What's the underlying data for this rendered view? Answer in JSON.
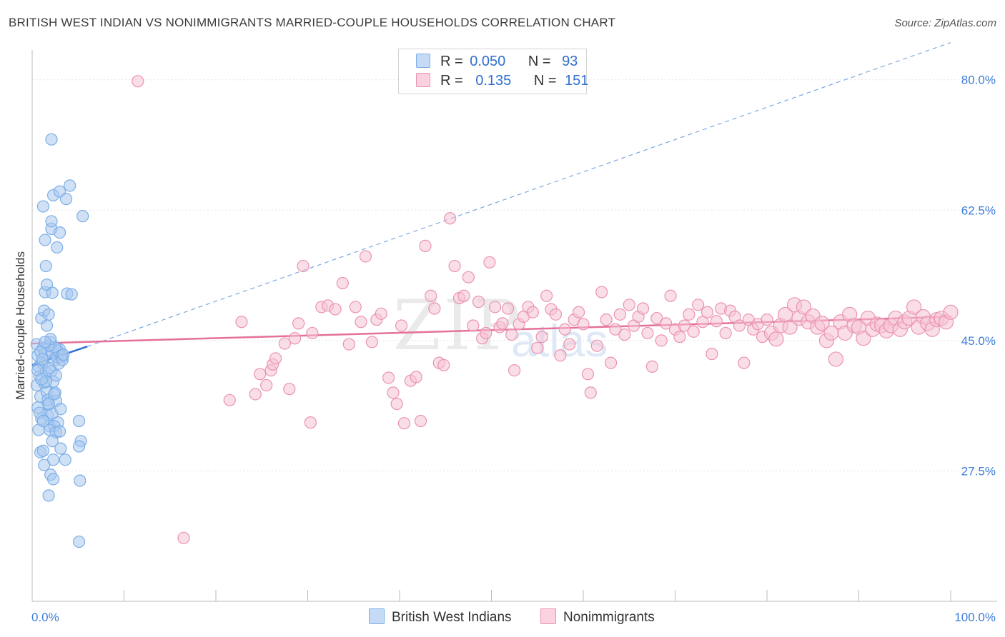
{
  "title": "BRITISH WEST INDIAN VS NONIMMIGRANTS MARRIED-COUPLE HOUSEHOLDS CORRELATION CHART",
  "source": "Source: ZipAtlas.com",
  "watermark": {
    "zip": "ZIP",
    "atlas": "atlas"
  },
  "legend": {
    "rows": [
      {
        "r_label": "R =",
        "r_value": "0.050",
        "n_label": "N =",
        "n_value": "93",
        "color": "#a9c8f0"
      },
      {
        "r_label": "R =",
        "r_value": "0.135",
        "n_label": "N =",
        "n_value": "151",
        "color": "#f7bcd0"
      }
    ]
  },
  "bottom_legend": [
    {
      "label": "British West Indians",
      "color": "#a9c8f0"
    },
    {
      "label": "Nonimmigrants",
      "color": "#f7bcd0"
    }
  ],
  "chart_data": {
    "type": "scatter",
    "title": "BRITISH WEST INDIAN VS NONIMMIGRANTS MARRIED-COUPLE HOUSEHOLDS CORRELATION CHART",
    "xlabel": "",
    "ylabel": "Married-couple Households",
    "xlim": [
      0,
      100
    ],
    "ylim": [
      10,
      84
    ],
    "x_tick_labels": [
      {
        "value": 0,
        "label": "0.0%"
      },
      {
        "value": 100,
        "label": "100.0%"
      }
    ],
    "y_ticks": [
      {
        "value": 27.5,
        "label": "27.5%"
      },
      {
        "value": 45.0,
        "label": "45.0%"
      },
      {
        "value": 62.5,
        "label": "62.5%"
      },
      {
        "value": 80.0,
        "label": "80.0%"
      }
    ],
    "series": [
      {
        "name": "British West Indians",
        "color": "#7aaee8",
        "fill": "#aac9ef",
        "trend": {
          "x0": 0,
          "y0": 41.7,
          "x1": 6,
          "y1": 44.2,
          "color": "#2c6fd1"
        },
        "trend_extended": {
          "x0": 6,
          "y0": 44.2,
          "x1": 100,
          "y1": 85.0,
          "color": "#7aa7e0"
        },
        "points": [
          [
            0.5,
            44.5
          ],
          [
            0.6,
            43.0
          ],
          [
            0.7,
            41.5
          ],
          [
            0.8,
            40.2
          ],
          [
            0.5,
            39.0
          ],
          [
            0.9,
            37.5
          ],
          [
            0.6,
            36.0
          ],
          [
            1.0,
            34.5
          ],
          [
            0.7,
            33.0
          ],
          [
            1.2,
            44.0
          ],
          [
            1.4,
            43.2
          ],
          [
            1.1,
            42.0
          ],
          [
            1.5,
            40.8
          ],
          [
            1.3,
            39.3
          ],
          [
            1.6,
            38.1
          ],
          [
            1.8,
            36.4
          ],
          [
            1.7,
            35.0
          ],
          [
            1.9,
            33.5
          ],
          [
            2.0,
            44.8
          ],
          [
            2.2,
            43.4
          ],
          [
            2.4,
            42.3
          ],
          [
            2.1,
            40.9
          ],
          [
            2.3,
            39.5
          ],
          [
            2.5,
            38.0
          ],
          [
            2.6,
            36.9
          ],
          [
            2.2,
            35.2
          ],
          [
            2.8,
            34.0
          ],
          [
            3.0,
            43.8
          ],
          [
            2.7,
            42.8
          ],
          [
            1.0,
            48.0
          ],
          [
            1.3,
            49.0
          ],
          [
            1.6,
            47.0
          ],
          [
            1.8,
            48.5
          ],
          [
            1.4,
            51.5
          ],
          [
            1.6,
            52.5
          ],
          [
            2.2,
            51.4
          ],
          [
            1.5,
            55.0
          ],
          [
            2.7,
            57.5
          ],
          [
            2.1,
            60.0
          ],
          [
            1.4,
            58.5
          ],
          [
            2.1,
            61.0
          ],
          [
            3.0,
            59.5
          ],
          [
            1.2,
            63.0
          ],
          [
            2.3,
            64.5
          ],
          [
            3.0,
            65.0
          ],
          [
            3.7,
            64.0
          ],
          [
            4.1,
            65.8
          ],
          [
            5.5,
            61.7
          ],
          [
            2.1,
            72.0
          ],
          [
            3.8,
            51.3
          ],
          [
            4.3,
            51.2
          ],
          [
            3.3,
            42.8
          ],
          [
            2.8,
            43.6
          ],
          [
            2.5,
            44.1
          ],
          [
            1.8,
            44.3
          ],
          [
            2.0,
            45.2
          ],
          [
            0.9,
            43.5
          ],
          [
            1.1,
            42.5
          ],
          [
            0.6,
            41.0
          ],
          [
            1.5,
            39.5
          ],
          [
            1.7,
            37.0
          ],
          [
            0.8,
            35.3
          ],
          [
            1.2,
            34.2
          ],
          [
            2.4,
            33.5
          ],
          [
            1.9,
            33.0
          ],
          [
            2.6,
            32.7
          ],
          [
            2.2,
            31.5
          ],
          [
            3.0,
            32.8
          ],
          [
            0.9,
            30.0
          ],
          [
            1.2,
            30.2
          ],
          [
            3.1,
            30.5
          ],
          [
            2.3,
            29.0
          ],
          [
            1.3,
            28.3
          ],
          [
            3.6,
            29.0
          ],
          [
            5.3,
            31.5
          ],
          [
            5.1,
            30.8
          ],
          [
            2.0,
            27.0
          ],
          [
            2.3,
            26.4
          ],
          [
            5.2,
            26.2
          ],
          [
            1.8,
            24.2
          ],
          [
            5.1,
            34.2
          ],
          [
            3.1,
            35.8
          ],
          [
            3.2,
            43.0
          ],
          [
            1.8,
            36.5
          ],
          [
            2.4,
            37.8
          ],
          [
            1.0,
            39.8
          ],
          [
            2.6,
            40.3
          ],
          [
            1.9,
            41.3
          ],
          [
            2.9,
            41.9
          ],
          [
            3.3,
            42.4
          ],
          [
            3.4,
            43.1
          ],
          [
            1.4,
            44.8
          ],
          [
            5.1,
            18.0
          ]
        ]
      },
      {
        "name": "Nonimmigrants",
        "color": "#eb92b2",
        "fill": "#f6c2d4",
        "trend": {
          "x0": 0,
          "y0": 44.6,
          "x1": 100,
          "y1": 48.2,
          "color": "#e5709a"
        },
        "points": [
          [
            11.5,
            79.8
          ],
          [
            16.5,
            18.5
          ],
          [
            21.5,
            37.0
          ],
          [
            22.8,
            47.5
          ],
          [
            24.3,
            37.8
          ],
          [
            24.8,
            40.5
          ],
          [
            25.5,
            39.0
          ],
          [
            26.0,
            41.0
          ],
          [
            26.2,
            41.8
          ],
          [
            26.5,
            42.6
          ],
          [
            27.5,
            44.6
          ],
          [
            28.0,
            38.5
          ],
          [
            28.6,
            45.3
          ],
          [
            29.0,
            47.3
          ],
          [
            30.5,
            46.0
          ],
          [
            29.5,
            55.0
          ],
          [
            30.3,
            34.0
          ],
          [
            31.5,
            49.5
          ],
          [
            32.2,
            49.7
          ],
          [
            33.0,
            49.2
          ],
          [
            33.8,
            52.7
          ],
          [
            34.5,
            44.5
          ],
          [
            35.2,
            49.5
          ],
          [
            35.8,
            47.5
          ],
          [
            36.3,
            56.3
          ],
          [
            37.0,
            44.8
          ],
          [
            37.5,
            47.8
          ],
          [
            38.0,
            48.6
          ],
          [
            38.8,
            40.0
          ],
          [
            39.3,
            38.0
          ],
          [
            39.7,
            36.5
          ],
          [
            40.2,
            47.0
          ],
          [
            40.5,
            33.9
          ],
          [
            41.2,
            39.6
          ],
          [
            41.8,
            40.1
          ],
          [
            42.3,
            34.2
          ],
          [
            42.8,
            57.7
          ],
          [
            43.4,
            51.0
          ],
          [
            43.8,
            49.3
          ],
          [
            44.3,
            42.0
          ],
          [
            44.8,
            41.7
          ],
          [
            45.5,
            61.4
          ],
          [
            46.0,
            55.0
          ],
          [
            46.5,
            50.7
          ],
          [
            47.0,
            51.0
          ],
          [
            47.5,
            53.5
          ],
          [
            48.0,
            47.0
          ],
          [
            48.6,
            50.2
          ],
          [
            49.0,
            45.3
          ],
          [
            49.4,
            46.0
          ],
          [
            49.8,
            55.5
          ],
          [
            50.4,
            49.5
          ],
          [
            50.9,
            46.8
          ],
          [
            51.2,
            47.3
          ],
          [
            51.8,
            49.3
          ],
          [
            52.2,
            45.8
          ],
          [
            52.5,
            41.0
          ],
          [
            53.0,
            47.2
          ],
          [
            53.5,
            48.2
          ],
          [
            54.0,
            49.5
          ],
          [
            54.5,
            48.8
          ],
          [
            55.0,
            44.0
          ],
          [
            55.5,
            45.5
          ],
          [
            56.0,
            51.0
          ],
          [
            56.5,
            49.2
          ],
          [
            57.0,
            48.5
          ],
          [
            57.5,
            43.0
          ],
          [
            58.0,
            46.5
          ],
          [
            58.5,
            44.5
          ],
          [
            59.0,
            47.8
          ],
          [
            59.5,
            48.8
          ],
          [
            60.0,
            47.2
          ],
          [
            60.5,
            40.5
          ],
          [
            60.8,
            38.0
          ],
          [
            61.5,
            44.3
          ],
          [
            62.0,
            51.5
          ],
          [
            62.5,
            47.8
          ],
          [
            63.0,
            42.0
          ],
          [
            63.5,
            46.5
          ],
          [
            64.0,
            48.5
          ],
          [
            64.5,
            45.8
          ],
          [
            65.0,
            49.8
          ],
          [
            65.5,
            47.0
          ],
          [
            66.0,
            48.2
          ],
          [
            66.5,
            49.3
          ],
          [
            67.0,
            46.0
          ],
          [
            67.5,
            41.5
          ],
          [
            68.0,
            48.0
          ],
          [
            68.5,
            45.0
          ],
          [
            69.0,
            47.3
          ],
          [
            69.5,
            51.0
          ],
          [
            70.0,
            46.5
          ],
          [
            70.5,
            45.5
          ],
          [
            71.0,
            47.0
          ],
          [
            71.5,
            48.5
          ],
          [
            72.0,
            46.2
          ],
          [
            72.5,
            49.8
          ],
          [
            73.0,
            47.5
          ],
          [
            73.5,
            48.8
          ],
          [
            74.0,
            43.2
          ],
          [
            74.5,
            47.6
          ],
          [
            75.0,
            49.3
          ],
          [
            75.5,
            46.0
          ],
          [
            76.0,
            49.0
          ],
          [
            76.5,
            48.2
          ],
          [
            77.0,
            47.0
          ],
          [
            77.5,
            42.0
          ],
          [
            78.0,
            47.8
          ],
          [
            78.5,
            46.5
          ],
          [
            79.0,
            47.2
          ],
          [
            79.5,
            45.5
          ],
          [
            80.0,
            47.8
          ],
          [
            80.5,
            46.0
          ],
          [
            81.0,
            45.2
          ],
          [
            81.5,
            47.0
          ],
          [
            82.0,
            48.5
          ],
          [
            82.5,
            46.8
          ],
          [
            83.0,
            49.8
          ],
          [
            83.5,
            48.0
          ],
          [
            84.0,
            49.5
          ],
          [
            84.5,
            47.5
          ],
          [
            85.0,
            48.3
          ],
          [
            85.5,
            46.8
          ],
          [
            86.0,
            47.3
          ],
          [
            86.5,
            45.0
          ],
          [
            87.0,
            46.0
          ],
          [
            87.5,
            42.5
          ],
          [
            88.0,
            47.5
          ],
          [
            88.5,
            46.0
          ],
          [
            89.0,
            48.5
          ],
          [
            89.5,
            47.0
          ],
          [
            90.0,
            46.8
          ],
          [
            90.5,
            45.3
          ],
          [
            91.0,
            48.0
          ],
          [
            91.5,
            46.5
          ],
          [
            92.0,
            47.2
          ],
          [
            92.5,
            47.0
          ],
          [
            93.0,
            46.3
          ],
          [
            93.5,
            47.0
          ],
          [
            94.0,
            48.0
          ],
          [
            94.5,
            46.5
          ],
          [
            95.0,
            47.5
          ],
          [
            95.5,
            48.0
          ],
          [
            96.0,
            49.5
          ],
          [
            96.5,
            46.8
          ],
          [
            97.0,
            48.2
          ],
          [
            97.5,
            47.3
          ],
          [
            98.0,
            46.5
          ],
          [
            98.5,
            47.8
          ],
          [
            99.0,
            48.0
          ],
          [
            99.5,
            47.5
          ],
          [
            100.0,
            48.8
          ]
        ]
      }
    ]
  }
}
